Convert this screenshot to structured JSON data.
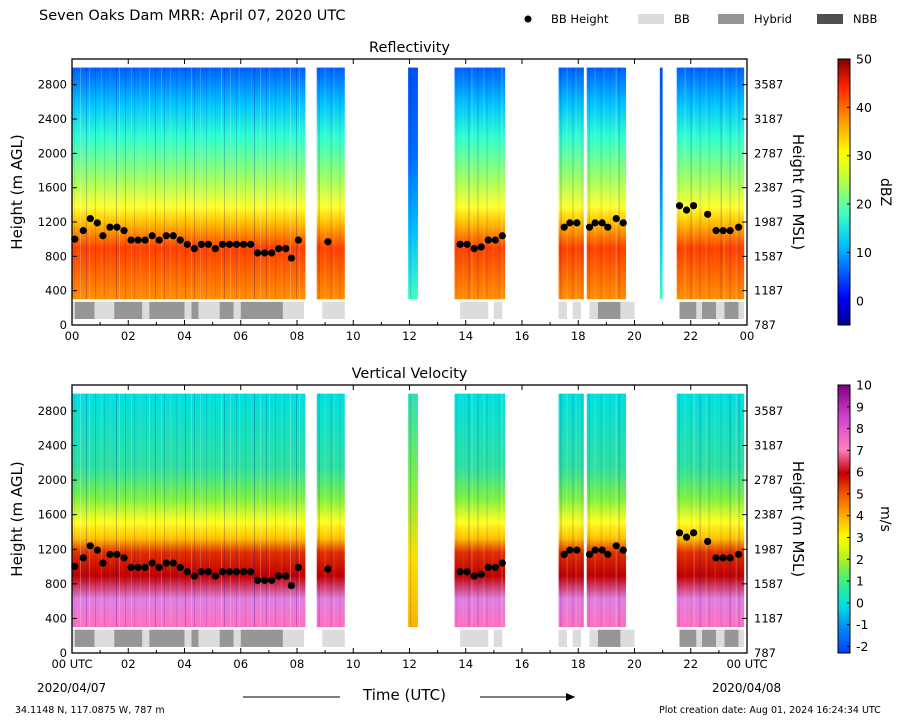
{
  "page": {
    "title": "Seven Oaks Dam MRR:  April 07, 2020 UTC",
    "location": "34.1148 N, 117.0875 W, 787 m",
    "creation": "Plot creation date: Aug 01, 2024 16:24:34 UTC",
    "xlabel": "Time (UTC)",
    "date_start": "2020/04/07",
    "date_end": "2020/04/08"
  },
  "legend": [
    {
      "label": "BB Height",
      "color": "#000000",
      "kind": "dot"
    },
    {
      "label": "BB",
      "color": "#dcdcdc",
      "kind": "bar"
    },
    {
      "label": "Hybrid",
      "color": "#969696",
      "kind": "bar"
    },
    {
      "label": "NBB",
      "color": "#505050",
      "kind": "bar"
    }
  ],
  "chart_data": [
    {
      "type": "heatmap",
      "title": "Reflectivity",
      "ylabel": "Height (m AGL)",
      "ylabel_right": "Height (m MSL)",
      "xlim": [
        0,
        24
      ],
      "ylim": [
        0,
        3100
      ],
      "x_ticks": [
        "00",
        "02",
        "04",
        "06",
        "08",
        "10",
        "12",
        "14",
        "16",
        "18",
        "20",
        "22",
        "00"
      ],
      "y_ticks": [
        0,
        400,
        800,
        1200,
        1600,
        2000,
        2400,
        2800
      ],
      "y_ticks_right": [
        "787",
        "1187",
        "1587",
        "1987",
        "2387",
        "2787",
        "3187",
        "3587"
      ],
      "colorbar": {
        "label": "dBZ",
        "min": -5,
        "max": 50,
        "ticks": [
          "0",
          "10",
          "20",
          "30",
          "40",
          "50"
        ]
      },
      "data_segments_hours": [
        [
          0,
          8.3
        ],
        [
          8.7,
          9.7
        ],
        [
          11.95,
          12.3
        ],
        [
          13.6,
          15.4
        ],
        [
          17.3,
          18.2
        ],
        [
          18.3,
          19.7
        ],
        [
          20.9,
          21.0
        ],
        [
          21.5,
          23.9
        ]
      ]
    },
    {
      "type": "heatmap",
      "title": "Vertical Velocity",
      "ylabel": "Height (m AGL)",
      "ylabel_right": "Height (m MSL)",
      "xlim": [
        0,
        24
      ],
      "ylim": [
        0,
        3100
      ],
      "x_ticks": [
        "00 UTC",
        "02",
        "04",
        "06",
        "08",
        "10",
        "12",
        "14",
        "16",
        "18",
        "20",
        "22",
        "00 UTC"
      ],
      "y_ticks": [
        0,
        400,
        800,
        1200,
        1600,
        2000,
        2400,
        2800
      ],
      "y_ticks_right": [
        "787",
        "1187",
        "1587",
        "1987",
        "2387",
        "2787",
        "3187",
        "3587"
      ],
      "colorbar": {
        "label": "m/s",
        "min": -2.3,
        "max": 10,
        "ticks": [
          "-2",
          "-1",
          "0",
          "1",
          "2",
          "3",
          "4",
          "5",
          "6",
          "7",
          "8",
          "9",
          "10"
        ]
      },
      "data_segments_hours": [
        [
          0,
          8.3
        ],
        [
          8.7,
          9.7
        ],
        [
          11.95,
          12.3
        ],
        [
          13.6,
          15.4
        ],
        [
          17.3,
          18.2
        ],
        [
          18.3,
          19.7
        ],
        [
          21.5,
          23.9
        ]
      ]
    }
  ],
  "bb_height": [
    [
      0.1,
      1000
    ],
    [
      0.4,
      1100
    ],
    [
      0.65,
      1240
    ],
    [
      0.9,
      1190
    ],
    [
      1.1,
      1040
    ],
    [
      1.35,
      1140
    ],
    [
      1.6,
      1140
    ],
    [
      1.85,
      1100
    ],
    [
      2.1,
      990
    ],
    [
      2.35,
      990
    ],
    [
      2.6,
      990
    ],
    [
      2.85,
      1040
    ],
    [
      3.1,
      990
    ],
    [
      3.35,
      1040
    ],
    [
      3.6,
      1040
    ],
    [
      3.85,
      990
    ],
    [
      4.1,
      940
    ],
    [
      4.35,
      890
    ],
    [
      4.6,
      940
    ],
    [
      4.85,
      940
    ],
    [
      5.1,
      890
    ],
    [
      5.35,
      940
    ],
    [
      5.6,
      940
    ],
    [
      5.85,
      940
    ],
    [
      6.1,
      940
    ],
    [
      6.35,
      940
    ],
    [
      6.6,
      840
    ],
    [
      6.85,
      840
    ],
    [
      7.1,
      840
    ],
    [
      7.35,
      890
    ],
    [
      7.6,
      890
    ],
    [
      7.8,
      780
    ],
    [
      8.05,
      990
    ],
    [
      9.1,
      970
    ],
    [
      13.8,
      940
    ],
    [
      14.05,
      940
    ],
    [
      14.3,
      890
    ],
    [
      14.55,
      910
    ],
    [
      14.8,
      990
    ],
    [
      15.05,
      990
    ],
    [
      15.3,
      1040
    ],
    [
      17.5,
      1140
    ],
    [
      17.7,
      1190
    ],
    [
      17.95,
      1190
    ],
    [
      18.4,
      1140
    ],
    [
      18.6,
      1190
    ],
    [
      18.85,
      1190
    ],
    [
      19.05,
      1140
    ],
    [
      19.35,
      1240
    ],
    [
      19.6,
      1190
    ],
    [
      21.6,
      1390
    ],
    [
      21.85,
      1340
    ],
    [
      22.1,
      1390
    ],
    [
      22.6,
      1290
    ],
    [
      22.9,
      1100
    ],
    [
      23.15,
      1100
    ],
    [
      23.4,
      1100
    ],
    [
      23.7,
      1140
    ]
  ],
  "bb_type_bars": [
    [
      0.0,
      0.1,
      "BB"
    ],
    [
      0.1,
      0.8,
      "Hybrid"
    ],
    [
      0.8,
      1.5,
      "BB"
    ],
    [
      1.5,
      2.5,
      "Hybrid"
    ],
    [
      2.5,
      2.75,
      "BB"
    ],
    [
      2.75,
      4.0,
      "Hybrid"
    ],
    [
      4.0,
      4.25,
      "BB"
    ],
    [
      4.25,
      4.5,
      "Hybrid"
    ],
    [
      4.5,
      5.25,
      "BB"
    ],
    [
      5.25,
      5.75,
      "Hybrid"
    ],
    [
      5.75,
      6.0,
      "BB"
    ],
    [
      6.0,
      7.5,
      "Hybrid"
    ],
    [
      7.5,
      8.25,
      "BB"
    ],
    [
      8.9,
      9.7,
      "BB"
    ],
    [
      13.8,
      14.8,
      "BB"
    ],
    [
      15.0,
      15.3,
      "BB"
    ],
    [
      17.3,
      17.6,
      "BB"
    ],
    [
      17.8,
      18.1,
      "BB"
    ],
    [
      18.4,
      18.7,
      "BB"
    ],
    [
      18.7,
      19.5,
      "Hybrid"
    ],
    [
      19.5,
      20.0,
      "BB"
    ],
    [
      21.6,
      22.2,
      "Hybrid"
    ],
    [
      22.2,
      22.4,
      "BB"
    ],
    [
      22.4,
      22.9,
      "Hybrid"
    ],
    [
      22.9,
      23.2,
      "BB"
    ],
    [
      23.2,
      23.7,
      "Hybrid"
    ],
    [
      23.7,
      23.9,
      "BB"
    ]
  ]
}
